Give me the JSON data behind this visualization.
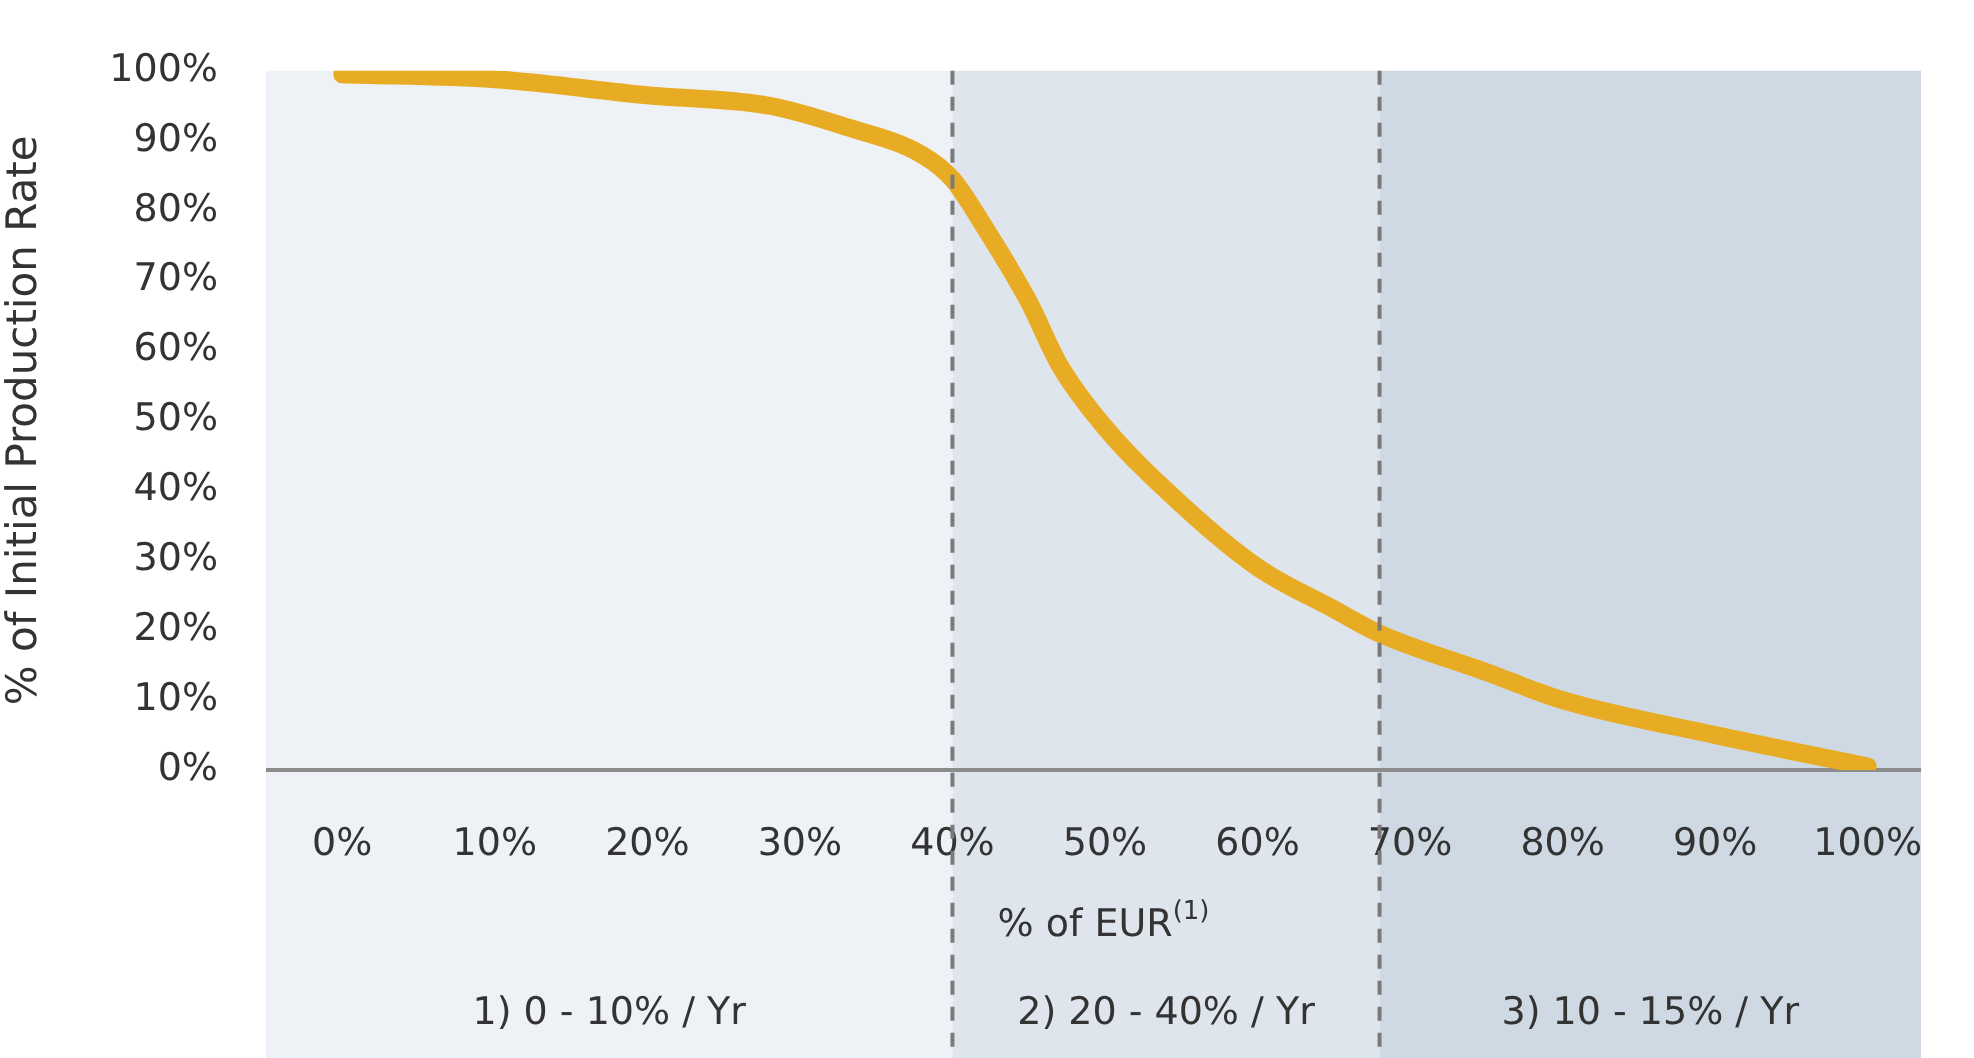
{
  "chart_data": {
    "type": "line",
    "xlabel": "% of EUR$^{(1)}$",
    "ylabel": "% of Initial Production Rate",
    "x": [
      0,
      10,
      20,
      28,
      33,
      38,
      40,
      42,
      45,
      47,
      50,
      55,
      60,
      65,
      68,
      75,
      80,
      90,
      100
    ],
    "series": [
      {
        "color": "#e8ac24",
        "values": [
          99.5,
          98.8,
          96.5,
          95,
          92,
          88,
          84.5,
          78,
          67,
          58,
          49,
          38,
          29,
          23,
          19.5,
          14,
          10,
          5,
          0.5
        ]
      }
    ],
    "xlim": [
      -5,
      103.5
    ],
    "xticks": [
      {
        "value": 0,
        "label": "0%"
      },
      {
        "value": 10,
        "label": "10%"
      },
      {
        "value": 20,
        "label": "20%"
      },
      {
        "value": 30,
        "label": "30%"
      },
      {
        "value": 40,
        "label": "40%"
      },
      {
        "value": 50,
        "label": "50%"
      },
      {
        "value": 60,
        "label": "60%"
      },
      {
        "value": 70,
        "label": "70%"
      },
      {
        "value": 80,
        "label": "80%"
      },
      {
        "value": 90,
        "label": "90%"
      },
      {
        "value": 100,
        "label": "100%"
      }
    ],
    "ylim": [
      0,
      100
    ],
    "yticks": [
      {
        "value": 0,
        "label": "0%"
      },
      {
        "value": 10,
        "label": "10%"
      },
      {
        "value": 20,
        "label": "20%"
      },
      {
        "value": 30,
        "label": "30%"
      },
      {
        "value": 40,
        "label": "40%"
      },
      {
        "value": 50,
        "label": "50%"
      },
      {
        "value": 60,
        "label": "60%"
      },
      {
        "value": 70,
        "label": "70%"
      },
      {
        "value": 80,
        "label": "80%"
      },
      {
        "value": 90,
        "label": "90%"
      },
      {
        "value": 100,
        "label": "100%"
      }
    ],
    "bands": [
      {
        "axis": "x",
        "from": -5,
        "to": 40,
        "label": "1) 0 - 10% / Yr",
        "color": "#eef1f6"
      },
      {
        "axis": "x",
        "from": 40,
        "to": 68,
        "label": "2) 20 - 40% / Yr",
        "color": "#dfe5ed"
      },
      {
        "axis": "x",
        "from": 68,
        "to": 103.5,
        "label": "3) 10 - 15% / Yr",
        "color": "#cfd9e3"
      }
    ],
    "ref_lines": [
      {
        "axis": "x",
        "value": 40,
        "line_style": "dashed",
        "color": "#7a7a7a"
      },
      {
        "axis": "x",
        "value": 68,
        "line_style": "dashed",
        "color": "#7a7a7a"
      }
    ],
    "grid": false,
    "legend": false,
    "marker": "none",
    "line_style": "solid"
  }
}
